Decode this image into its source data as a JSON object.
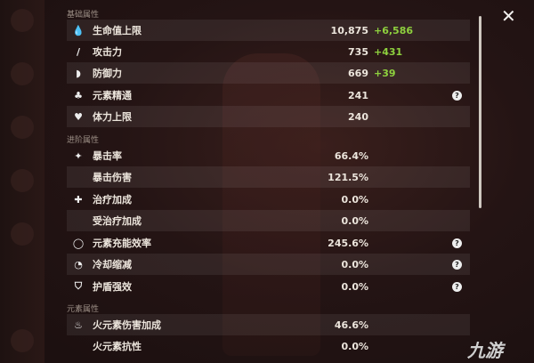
{
  "sections": {
    "base": "基础属性",
    "advanced": "进阶属性",
    "element": "元素属性"
  },
  "rows": [
    {
      "icon": "hp-icon",
      "label": "生命值上限",
      "value": "10,875",
      "bonus": "+6,586"
    },
    {
      "icon": "attack-icon",
      "label": "攻击力",
      "value": "735",
      "bonus": "+431"
    },
    {
      "icon": "defense-icon",
      "label": "防御力",
      "value": "669",
      "bonus": "+39"
    },
    {
      "icon": "elemental-mastery-icon",
      "label": "元素精通",
      "value": "241",
      "help": "?"
    },
    {
      "icon": "stamina-icon",
      "label": "体力上限",
      "value": "240"
    },
    {
      "icon": "crit-rate-icon",
      "label": "暴击率",
      "value": "66.4%"
    },
    {
      "label": "暴击伤害",
      "value": "121.5%"
    },
    {
      "icon": "healing-bonus-icon",
      "label": "治疗加成",
      "value": "0.0%"
    },
    {
      "label": "受治疗加成",
      "value": "0.0%"
    },
    {
      "icon": "energy-recharge-icon",
      "label": "元素充能效率",
      "value": "245.6%",
      "help": "?"
    },
    {
      "icon": "cd-reduction-icon",
      "label": "冷却缩减",
      "value": "0.0%",
      "help": "?"
    },
    {
      "icon": "shield-strength-icon",
      "label": "护盾强效",
      "value": "0.0%",
      "help": "?"
    },
    {
      "icon": "pyro-icon",
      "label": "火元素伤害加成",
      "value": "46.6%"
    },
    {
      "label": "火元素抗性",
      "value": "0.0%"
    }
  ],
  "close": "✕",
  "watermark": "九游",
  "colors": {
    "bonus": "#8ed13e"
  }
}
